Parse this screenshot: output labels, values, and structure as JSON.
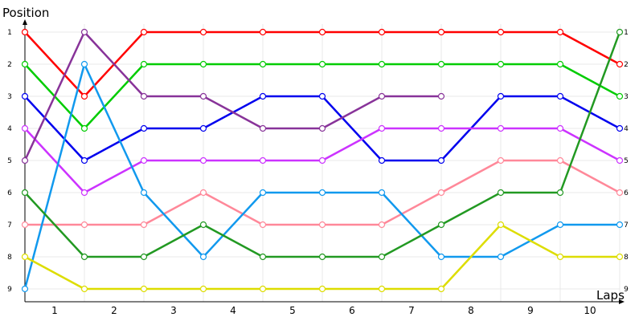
{
  "chart_data": {
    "type": "line",
    "ylabel": "Position",
    "xlabel": "Laps",
    "x": [
      0,
      1,
      2,
      3,
      4,
      5,
      6,
      7,
      8,
      9,
      10
    ],
    "lap_labels": [
      "1",
      "2",
      "3",
      "4",
      "5",
      "6",
      "7",
      "8",
      "9",
      "10"
    ],
    "position_ticks": [
      "1",
      "2",
      "3",
      "4",
      "5",
      "6",
      "7",
      "8",
      "9"
    ],
    "ylim": [
      1,
      9
    ],
    "y_inverted": true,
    "grid": true,
    "series": [
      {
        "color": "#ff0000",
        "values": [
          1,
          3,
          1,
          1,
          1,
          1,
          1,
          1,
          1,
          1,
          2
        ]
      },
      {
        "color": "#00cc00",
        "values": [
          2,
          4,
          2,
          2,
          2,
          2,
          2,
          2,
          2,
          2,
          3
        ]
      },
      {
        "color": "#0000ee",
        "values": [
          3,
          5,
          4,
          4,
          3,
          3,
          5,
          5,
          3,
          3,
          4
        ]
      },
      {
        "color": "#cc33ff",
        "values": [
          4,
          6,
          5,
          5,
          5,
          5,
          4,
          4,
          4,
          4,
          5
        ]
      },
      {
        "color": "#ff8899",
        "values": [
          7,
          7,
          7,
          6,
          7,
          7,
          7,
          6,
          5,
          5,
          6
        ]
      },
      {
        "color": "#1199ee",
        "values": [
          9,
          2,
          6,
          8,
          6,
          6,
          6,
          8,
          8,
          7,
          7
        ]
      },
      {
        "color": "#dddd00",
        "values": [
          8,
          9,
          9,
          9,
          9,
          9,
          9,
          9,
          7,
          8,
          8
        ]
      },
      {
        "color": "#229922",
        "values": [
          6,
          8,
          8,
          7,
          8,
          8,
          8,
          7,
          6,
          6,
          1
        ]
      },
      {
        "color": "#883399",
        "values": [
          5,
          1,
          3,
          3,
          4,
          4,
          3,
          3,
          null,
          null,
          null
        ]
      }
    ]
  }
}
